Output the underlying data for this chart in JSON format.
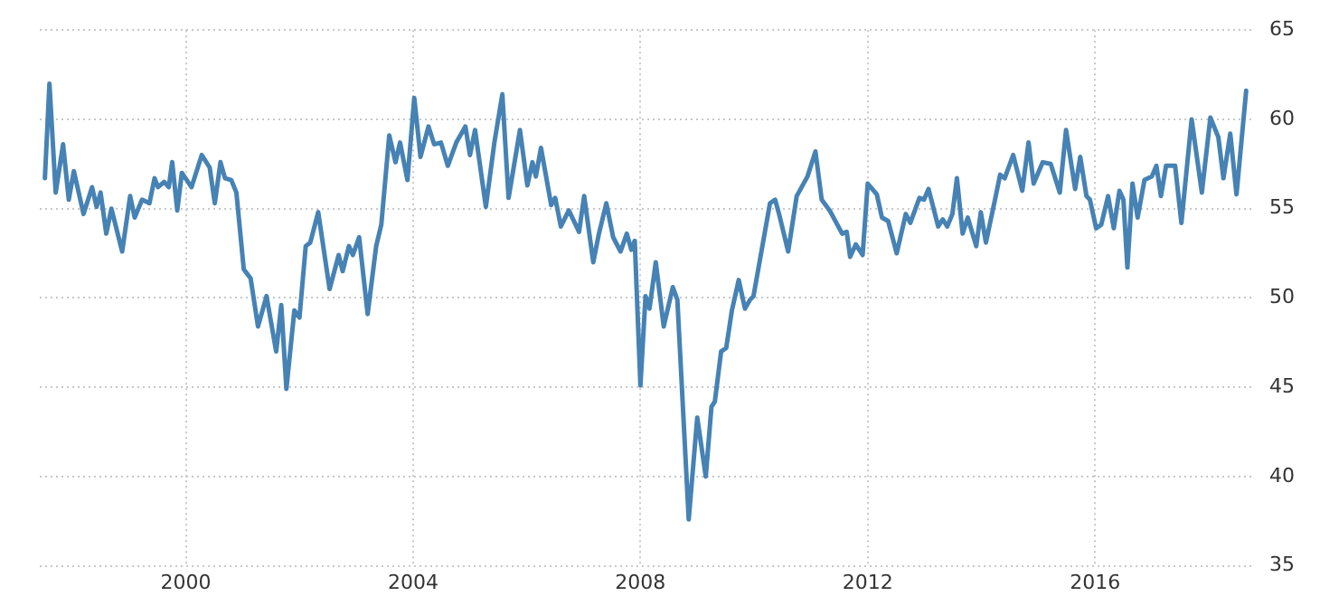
{
  "chart_data": {
    "type": "line",
    "x": [
      1997.52,
      1997.6,
      1997.71,
      1997.84,
      1997.94,
      1998.03,
      1998.2,
      1998.35,
      1998.43,
      1998.5,
      1998.6,
      1998.69,
      1998.88,
      1999.02,
      1999.1,
      1999.23,
      1999.36,
      1999.45,
      1999.51,
      1999.62,
      1999.7,
      1999.76,
      1999.85,
      1999.93,
      2000.1,
      2000.28,
      2000.42,
      2000.51,
      2000.61,
      2000.69,
      2000.8,
      2000.89,
      2001.02,
      2001.14,
      2001.27,
      2001.42,
      2001.59,
      2001.68,
      2001.77,
      2001.91,
      2002.0,
      2002.11,
      2002.19,
      2002.33,
      2002.53,
      2002.69,
      2002.76,
      2002.87,
      2002.94,
      2003.05,
      2003.2,
      2003.35,
      2003.44,
      2003.58,
      2003.69,
      2003.77,
      2003.9,
      2004.02,
      2004.13,
      2004.27,
      2004.37,
      2004.49,
      2004.61,
      2004.76,
      2004.92,
      2005.0,
      2005.09,
      2005.28,
      2005.43,
      2005.57,
      2005.68,
      2005.88,
      2006.01,
      2006.1,
      2006.16,
      2006.25,
      2006.43,
      2006.5,
      2006.6,
      2006.74,
      2006.92,
      2007.01,
      2007.17,
      2007.27,
      2007.4,
      2007.52,
      2007.65,
      2007.76,
      2007.84,
      2007.9,
      2008.0,
      2008.09,
      2008.16,
      2008.27,
      2008.41,
      2008.57,
      2008.65,
      2008.85,
      2009.0,
      2009.15,
      2009.25,
      2009.31,
      2009.42,
      2009.51,
      2009.61,
      2009.73,
      2009.84,
      2009.93,
      2009.99,
      2010.28,
      2010.37,
      2010.44,
      2010.6,
      2010.75,
      2010.94,
      2011.08,
      2011.19,
      2011.33,
      2011.55,
      2011.63,
      2011.69,
      2011.79,
      2011.91,
      2012.0,
      2012.16,
      2012.25,
      2012.36,
      2012.51,
      2012.67,
      2012.75,
      2012.91,
      2012.99,
      2013.07,
      2013.24,
      2013.32,
      2013.4,
      2013.49,
      2013.57,
      2013.67,
      2013.76,
      2013.91,
      2013.99,
      2014.08,
      2014.24,
      2014.33,
      2014.41,
      2014.56,
      2014.72,
      2014.83,
      2014.92,
      2015.08,
      2015.22,
      2015.38,
      2015.49,
      2015.65,
      2015.74,
      2015.85,
      2015.91,
      2016.02,
      2016.11,
      2016.23,
      2016.33,
      2016.43,
      2016.5,
      2016.57,
      2016.66,
      2016.75,
      2016.87,
      2017.0,
      2017.08,
      2017.16,
      2017.25,
      2017.41,
      2017.52,
      2017.7,
      2017.88,
      2018.03,
      2018.17,
      2018.26,
      2018.38,
      2018.49,
      2018.66
    ],
    "series": [
      {
        "color": "#4682b4",
        "values": [
          56.7,
          62.0,
          55.9,
          58.6,
          55.5,
          57.1,
          54.7,
          56.2,
          55.1,
          55.9,
          53.6,
          55.0,
          52.6,
          55.7,
          54.5,
          55.5,
          55.3,
          56.7,
          56.2,
          56.5,
          56.2,
          57.6,
          54.9,
          57.0,
          56.2,
          58.0,
          57.3,
          55.3,
          57.6,
          56.7,
          56.6,
          55.9,
          51.6,
          51.1,
          48.4,
          50.1,
          47.0,
          49.6,
          44.9,
          49.3,
          48.9,
          52.9,
          53.1,
          54.8,
          50.5,
          52.4,
          51.5,
          52.9,
          52.4,
          53.4,
          49.1,
          52.9,
          54.1,
          59.1,
          57.6,
          58.7,
          56.6,
          61.2,
          57.9,
          59.6,
          58.6,
          58.7,
          57.4,
          58.7,
          59.6,
          58.0,
          59.4,
          55.1,
          58.7,
          61.4,
          55.6,
          59.4,
          56.3,
          57.6,
          56.8,
          58.4,
          55.2,
          55.6,
          54.0,
          54.9,
          53.7,
          55.7,
          52.0,
          53.6,
          55.3,
          53.4,
          52.6,
          53.6,
          52.7,
          53.2,
          45.1,
          50.1,
          49.4,
          52.0,
          48.4,
          50.6,
          49.9,
          37.6,
          43.3,
          40.0,
          43.9,
          44.2,
          47.0,
          47.2,
          49.3,
          51.0,
          49.4,
          49.9,
          50.1,
          55.3,
          55.5,
          54.7,
          52.6,
          55.7,
          56.8,
          58.2,
          55.5,
          54.9,
          53.6,
          53.7,
          52.3,
          53.0,
          52.4,
          56.4,
          55.8,
          54.5,
          54.3,
          52.5,
          54.7,
          54.2,
          55.6,
          55.5,
          56.1,
          54.0,
          54.4,
          54.0,
          54.7,
          56.7,
          53.6,
          54.5,
          52.9,
          54.8,
          53.1,
          55.5,
          56.9,
          56.7,
          58.0,
          56.0,
          58.7,
          56.4,
          57.6,
          57.5,
          55.9,
          59.4,
          56.1,
          57.9,
          55.7,
          55.5,
          53.9,
          54.1,
          55.7,
          53.9,
          56.0,
          55.5,
          51.7,
          56.4,
          54.5,
          56.6,
          56.8,
          57.4,
          55.7,
          57.4,
          57.4,
          54.2,
          60.0,
          55.9,
          60.1,
          59.0,
          56.7,
          59.2,
          55.8,
          61.6
        ]
      }
    ],
    "xlim": [
      1997.43,
      2018.75
    ],
    "xticks": [
      2000,
      2004,
      2008,
      2012,
      2016
    ],
    "ylim": [
      35,
      65
    ],
    "yticks": [
      35,
      40,
      45,
      50,
      55,
      60,
      65
    ],
    "grid": true,
    "legend": false,
    "marker": "none",
    "line_style": "solid"
  }
}
